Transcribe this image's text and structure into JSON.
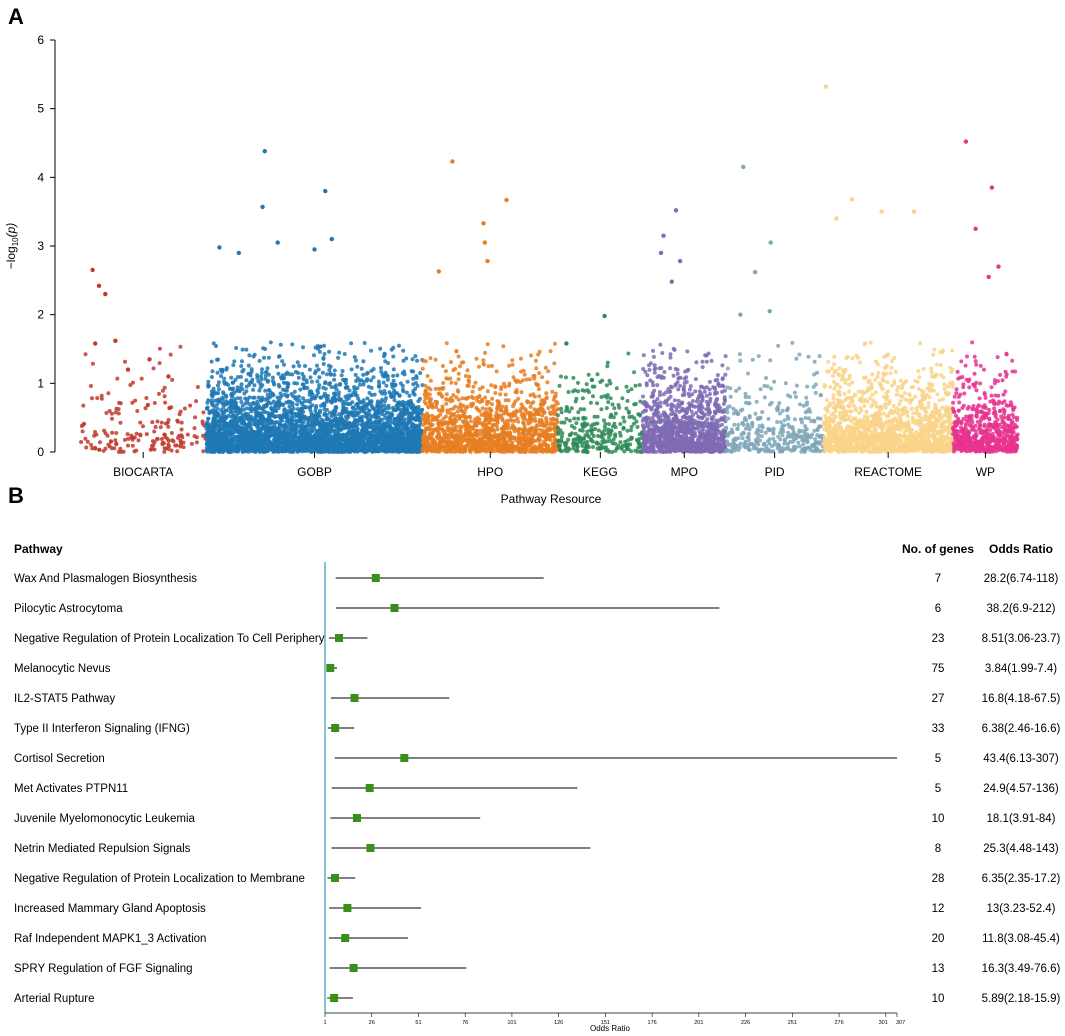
{
  "panels": {
    "a_label": "A",
    "b_label": "B"
  },
  "colors": {
    "BIOCARTA": "#c0392b",
    "GOBP": "#1f78b4",
    "HPO": "#e67e22",
    "KEGG": "#2e8b57",
    "MPO": "#7e6bb3",
    "PID": "#7ea6b8",
    "REACTOME": "#f9d488",
    "WP": "#e8338f",
    "forest_marker": "#3a8f1a",
    "forest_axis": "#5bb0c8"
  },
  "chart_data": [
    {
      "type": "scatter",
      "title": "",
      "xlabel": "Pathway Resource",
      "ylabel": "-log10(p)",
      "ylabel_parts": {
        "prefix": "−log",
        "sub": "10",
        "suffix": "(p)"
      },
      "ylim": [
        0,
        6
      ],
      "yticks": [
        "0",
        "1",
        "2",
        "3",
        "4",
        "5",
        "6"
      ],
      "categories": [
        "BIOCARTA",
        "GOBP",
        "HPO",
        "KEGG",
        "MPO",
        "PID",
        "REACTOME",
        "WP"
      ],
      "series": [
        {
          "name": "BIOCARTA",
          "span": [
            0.0,
            0.128
          ],
          "point_count": 180,
          "notable_points": [
            [
              0.1,
              2.65
            ],
            [
              0.15,
              2.42
            ],
            [
              0.2,
              2.3
            ],
            [
              0.28,
              1.62
            ],
            [
              0.55,
              1.35
            ],
            [
              0.12,
              1.58
            ],
            [
              0.7,
              1.1
            ],
            [
              0.38,
              1.2
            ]
          ]
        },
        {
          "name": "GOBP",
          "span": [
            0.128,
            0.347
          ],
          "point_count": 3600,
          "notable_points": [
            [
              0.27,
              4.38
            ],
            [
              0.26,
              3.57
            ],
            [
              0.55,
              3.8
            ],
            [
              0.33,
              3.05
            ],
            [
              0.58,
              3.1
            ],
            [
              0.5,
              2.95
            ],
            [
              0.06,
              2.98
            ],
            [
              0.15,
              2.9
            ]
          ]
        },
        {
          "name": "HPO",
          "span": [
            0.347,
            0.484
          ],
          "point_count": 1300,
          "notable_points": [
            [
              0.22,
              4.23
            ],
            [
              0.45,
              3.33
            ],
            [
              0.62,
              3.67
            ],
            [
              0.46,
              3.05
            ],
            [
              0.48,
              2.78
            ],
            [
              0.12,
              2.63
            ]
          ]
        },
        {
          "name": "KEGG",
          "span": [
            0.484,
            0.57
          ],
          "point_count": 300,
          "notable_points": [
            [
              0.55,
              1.98
            ],
            [
              0.1,
              1.58
            ],
            [
              0.4,
              1.05
            ]
          ]
        },
        {
          "name": "MPO",
          "span": [
            0.57,
            0.654
          ],
          "point_count": 1100,
          "notable_points": [
            [
              0.4,
              3.52
            ],
            [
              0.25,
              3.15
            ],
            [
              0.22,
              2.9
            ],
            [
              0.45,
              2.78
            ],
            [
              0.35,
              2.48
            ]
          ]
        },
        {
          "name": "PID",
          "span": [
            0.654,
            0.753
          ],
          "point_count": 350,
          "notable_points": [
            [
              0.18,
              4.15
            ],
            [
              0.46,
              3.05
            ],
            [
              0.3,
              2.62
            ],
            [
              0.45,
              2.05
            ],
            [
              0.15,
              2.0
            ]
          ]
        },
        {
          "name": "REACTOME",
          "span": [
            0.753,
            0.884
          ],
          "point_count": 1500,
          "notable_points": [
            [
              0.02,
              5.32
            ],
            [
              0.22,
              3.68
            ],
            [
              0.45,
              3.5
            ],
            [
              0.7,
              3.5
            ],
            [
              0.1,
              3.4
            ]
          ]
        },
        {
          "name": "WP",
          "span": [
            0.884,
            0.95
          ],
          "point_count": 600,
          "notable_points": [
            [
              0.2,
              4.52
            ],
            [
              0.6,
              3.85
            ],
            [
              0.35,
              3.25
            ],
            [
              0.7,
              2.7
            ],
            [
              0.55,
              2.55
            ]
          ]
        }
      ]
    },
    {
      "type": "forest",
      "title": "",
      "xlabel": "Odds Ratio",
      "xlim": [
        1,
        307
      ],
      "xticks": [
        1,
        26,
        51,
        76,
        101,
        126,
        151,
        176,
        201,
        226,
        251,
        276,
        301,
        307
      ],
      "columns": {
        "pathway": "Pathway",
        "genes": "No. of genes",
        "or": "Odds Ratio"
      },
      "rows": [
        {
          "pathway": "Wax And Plasmalogen Biosynthesis",
          "genes": "7",
          "or_text": "28.2(6.74-118)",
          "or": 28.2,
          "lo": 6.74,
          "hi": 118
        },
        {
          "pathway": "Pilocytic Astrocytoma",
          "genes": "6",
          "or_text": "38.2(6.9-212)",
          "or": 38.2,
          "lo": 6.9,
          "hi": 212
        },
        {
          "pathway": "Negative Regulation of Protein Localization To Cell Periphery",
          "genes": "23",
          "or_text": "8.51(3.06-23.7)",
          "or": 8.51,
          "lo": 3.06,
          "hi": 23.7
        },
        {
          "pathway": "Melanocytic Nevus",
          "genes": "75",
          "or_text": "3.84(1.99-7.4)",
          "or": 3.84,
          "lo": 1.99,
          "hi": 7.4
        },
        {
          "pathway": "IL2-STAT5 Pathway",
          "genes": "27",
          "or_text": "16.8(4.18-67.5)",
          "or": 16.8,
          "lo": 4.18,
          "hi": 67.5
        },
        {
          "pathway": "Type II Interferon Signaling (IFNG)",
          "genes": "33",
          "or_text": "6.38(2.46-16.6)",
          "or": 6.38,
          "lo": 2.46,
          "hi": 16.6
        },
        {
          "pathway": "Cortisol Secretion",
          "genes": "5",
          "or_text": "43.4(6.13-307)",
          "or": 43.4,
          "lo": 6.13,
          "hi": 307
        },
        {
          "pathway": "Met Activates PTPN11",
          "genes": "5",
          "or_text": "24.9(4.57-136)",
          "or": 24.9,
          "lo": 4.57,
          "hi": 136
        },
        {
          "pathway": "Juvenile Myelomonocytic Leukemia",
          "genes": "10",
          "or_text": "18.1(3.91-84)",
          "or": 18.1,
          "lo": 3.91,
          "hi": 84
        },
        {
          "pathway": "Netrin Mediated Repulsion Signals",
          "genes": "8",
          "or_text": "25.3(4.48-143)",
          "or": 25.3,
          "lo": 4.48,
          "hi": 143
        },
        {
          "pathway": "Negative Regulation of Protein Localization to Membrane",
          "genes": "28",
          "or_text": "6.35(2.35-17.2)",
          "or": 6.35,
          "lo": 2.35,
          "hi": 17.2
        },
        {
          "pathway": "Increased Mammary Gland Apoptosis",
          "genes": "12",
          "or_text": "13(3.23-52.4)",
          "or": 13,
          "lo": 3.23,
          "hi": 52.4
        },
        {
          "pathway": "Raf Independent MAPK1_3 Activation",
          "genes": "20",
          "or_text": "11.8(3.08-45.4)",
          "or": 11.8,
          "lo": 3.08,
          "hi": 45.4
        },
        {
          "pathway": "SPRY Regulation of FGF Signaling",
          "genes": "13",
          "or_text": "16.3(3.49-76.6)",
          "or": 16.3,
          "lo": 3.49,
          "hi": 76.6
        },
        {
          "pathway": "Arterial Rupture",
          "genes": "10",
          "or_text": "5.89(2.18-15.9)",
          "or": 5.89,
          "lo": 2.18,
          "hi": 15.9
        }
      ]
    }
  ]
}
